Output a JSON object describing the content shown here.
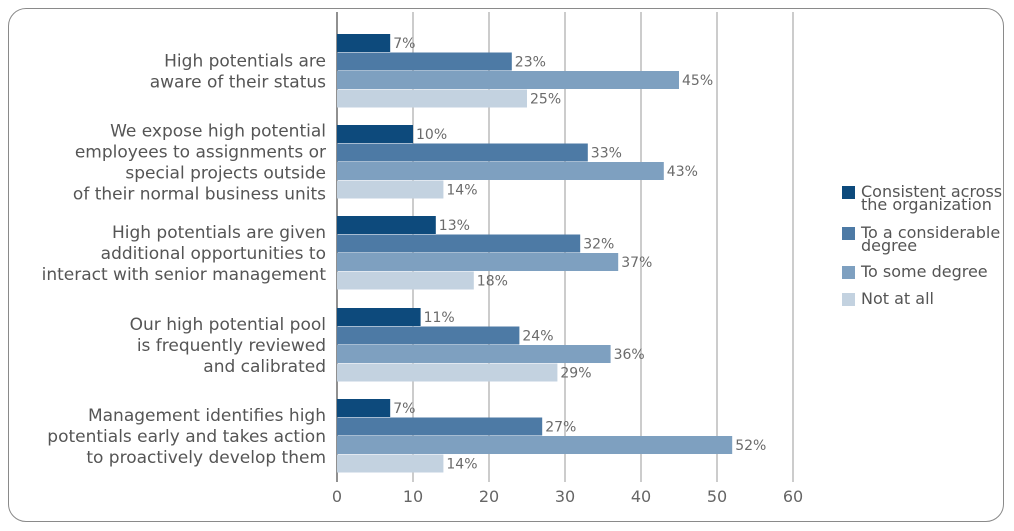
{
  "chart_data": {
    "type": "bar",
    "orientation": "horizontal",
    "categories": [
      [
        "High potentials are",
        "aware of their status"
      ],
      [
        "We expose high potential",
        "employees to assignments or",
        "special projects outside",
        "of their normal business units"
      ],
      [
        "High potentials are given",
        "additional opportunities to",
        "interact with senior management"
      ],
      [
        "Our high potential pool",
        "is frequently reviewed",
        "and calibrated"
      ],
      [
        "Management identifies high",
        "potentials early and takes action",
        "to proactively develop them"
      ]
    ],
    "series": [
      {
        "name": "Consistent across the organization",
        "legend_lines": [
          "Consistent across",
          "the organization"
        ],
        "color": "#0d4a7c",
        "values": [
          7,
          10,
          13,
          11,
          7
        ],
        "labels": [
          "7%",
          "10%",
          "13%",
          "11%",
          "7%"
        ]
      },
      {
        "name": "To a considerable degree",
        "legend_lines": [
          "To a considerable",
          "degree"
        ],
        "color": "#4d7aa5",
        "values": [
          23,
          33,
          32,
          24,
          27
        ],
        "labels": [
          "23%",
          "33%",
          "32%",
          "24%",
          "27%"
        ]
      },
      {
        "name": "To some degree",
        "legend_lines": [
          "To some degree"
        ],
        "color": "#7ea0c0",
        "values": [
          45,
          43,
          37,
          36,
          52
        ],
        "labels": [
          "45%",
          "43%",
          "37%",
          "36%",
          "52%"
        ]
      },
      {
        "name": "Not at all",
        "legend_lines": [
          "Not at all"
        ],
        "color": "#c3d2e0",
        "values": [
          25,
          14,
          18,
          29,
          14
        ],
        "labels": [
          "25%",
          "14%",
          "18%",
          "29%",
          "14%"
        ]
      }
    ],
    "xlim": [
      0,
      60
    ],
    "xticks": [
      "0",
      "10",
      "20",
      "30",
      "40",
      "50",
      "60"
    ],
    "xtick_values": [
      0,
      10,
      20,
      30,
      40,
      50,
      60
    ],
    "grid": "vertical",
    "legend_position": "right",
    "title": "",
    "xlabel": "",
    "ylabel": ""
  }
}
